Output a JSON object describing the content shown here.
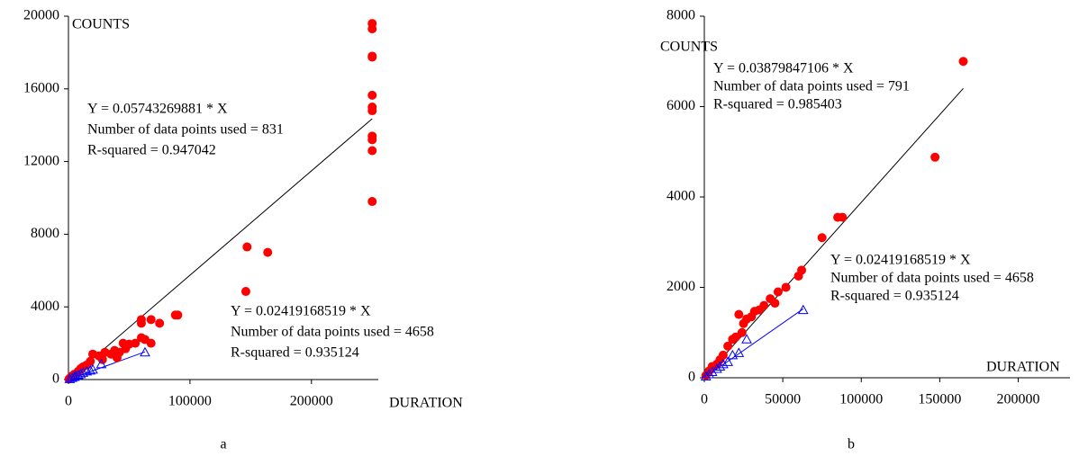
{
  "chart_data": [
    {
      "type": "scatter",
      "x_label": "DURATION",
      "y_label": "COUNTS",
      "caption": "a",
      "xlim": [
        0,
        255000
      ],
      "ylim": [
        0,
        20000
      ],
      "xticks": [
        0,
        100000,
        200000
      ],
      "yticks": [
        0,
        4000,
        8000,
        12000,
        16000,
        20000
      ],
      "series": [
        {
          "color": "#ff0000",
          "marker": "circle",
          "x": [
            250000,
            250000,
            250000,
            250000,
            250000,
            250000,
            250000,
            250000,
            250000,
            250000,
            250000,
            147000,
            146000,
            164000,
            88000,
            90000,
            75000,
            68000,
            60000,
            60000,
            60000,
            63000,
            68000,
            45000,
            50000,
            55000,
            47000,
            42000,
            38000,
            30000,
            25000,
            20000,
            18000,
            15000,
            12000,
            10000,
            8000,
            5000,
            3000,
            1500,
            500,
            40000,
            35000,
            28000
          ],
          "values": [
            19600,
            19300,
            17800,
            17750,
            15650,
            15000,
            14800,
            13400,
            13200,
            12600,
            9800,
            7300,
            4850,
            7000,
            3550,
            3550,
            3100,
            3300,
            3300,
            3100,
            2300,
            2200,
            2000,
            2000,
            1950,
            2000,
            1700,
            1500,
            1600,
            1500,
            1300,
            1400,
            1000,
            800,
            700,
            600,
            450,
            300,
            200,
            100,
            30,
            1200,
            1400,
            1100
          ]
        },
        {
          "color": "#0000ff",
          "marker": "triangle",
          "x": [
            63000,
            27000,
            20000,
            15000,
            10000,
            8000,
            5000,
            3000,
            1000,
            12000,
            18000,
            6000
          ],
          "values": [
            1500,
            850,
            550,
            450,
            300,
            250,
            150,
            90,
            30,
            380,
            500,
            200
          ]
        }
      ],
      "fit_lines": [
        {
          "color": "#000000",
          "x": [
            0,
            250000
          ],
          "values": [
            0,
            14358
          ]
        },
        {
          "color": "#0000ff",
          "x": [
            0,
            63000
          ],
          "values": [
            0,
            1524
          ]
        }
      ],
      "annotations": [
        [
          "Y = 0.05743269881 * X",
          "Number of data points used = 831",
          "R-squared = 0.947042"
        ],
        [
          "Y = 0.02419168519 * X",
          "Number of data points used = 4658",
          "R-squared = 0.935124"
        ]
      ]
    },
    {
      "type": "scatter",
      "x_label": "DURATION",
      "y_label": "COUNTS",
      "caption": "b",
      "xlim": [
        0,
        233000
      ],
      "ylim": [
        0,
        8000
      ],
      "xticks": [
        0,
        50000,
        100000,
        150000,
        200000
      ],
      "yticks": [
        0,
        2000,
        4000,
        6000,
        8000
      ],
      "series": [
        {
          "color": "#ff0000",
          "marker": "circle",
          "x": [
            165000,
            147000,
            88000,
            85000,
            75000,
            62000,
            60000,
            52000,
            47000,
            42000,
            38000,
            35000,
            32000,
            30000,
            27000,
            25000,
            22000,
            20000,
            18000,
            15000,
            12000,
            10000,
            8000,
            5000,
            3000,
            1000,
            45000,
            24000
          ],
          "values": [
            7000,
            4880,
            3550,
            3550,
            3100,
            2380,
            2250,
            2000,
            1900,
            1750,
            1600,
            1500,
            1470,
            1350,
            1300,
            1200,
            1400,
            900,
            850,
            700,
            500,
            400,
            300,
            250,
            150,
            50,
            1650,
            1000
          ]
        },
        {
          "color": "#0000ff",
          "marker": "triangle",
          "x": [
            63000,
            27000,
            22000,
            15000,
            12000,
            10000,
            8000,
            5000,
            3000,
            1000,
            18000
          ],
          "values": [
            1500,
            850,
            550,
            350,
            300,
            250,
            200,
            130,
            80,
            30,
            500
          ]
        }
      ],
      "fit_lines": [
        {
          "color": "#000000",
          "x": [
            0,
            165000
          ],
          "values": [
            0,
            6402
          ]
        },
        {
          "color": "#0000ff",
          "x": [
            0,
            63000
          ],
          "values": [
            0,
            1524
          ]
        }
      ],
      "annotations": [
        [
          "Y = 0.03879847106 * X",
          "Number of data points used = 791",
          "R-squared = 0.985403"
        ],
        [
          "Y = 0.02419168519 * X",
          "Number of data points used = 4658",
          "R-squared = 0.935124"
        ]
      ]
    }
  ]
}
